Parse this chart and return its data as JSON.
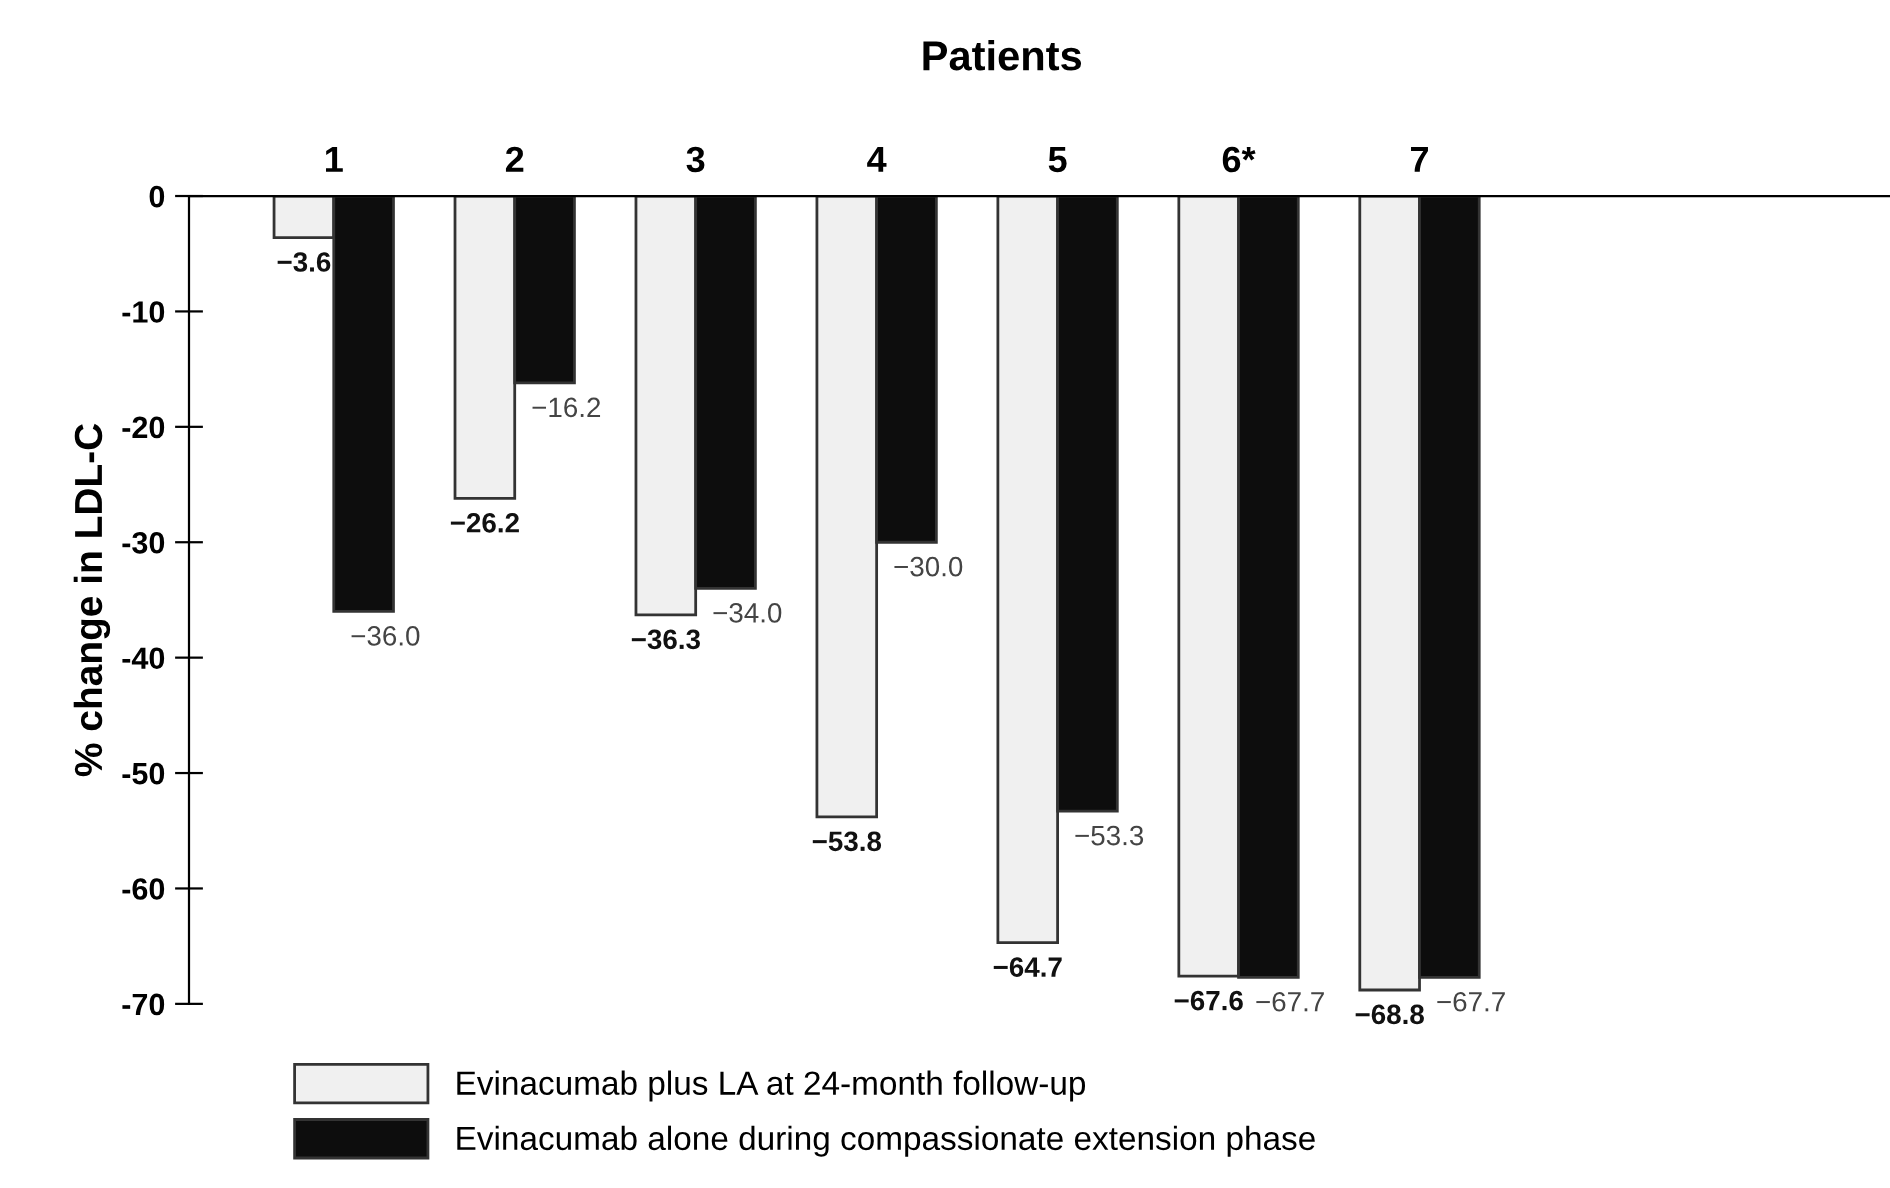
{
  "chart_data": {
    "type": "bar",
    "title": "Patients",
    "ylabel": "% change in LDL-C",
    "categories": [
      "1",
      "2",
      "3",
      "4",
      "5",
      "6*",
      "7"
    ],
    "series": [
      {
        "name": "Evinacumab plus LA at 24-month follow-up",
        "color": "#f0f0f0",
        "values": [
          -3.6,
          -26.2,
          -36.3,
          -53.8,
          -64.7,
          -67.6,
          -68.8
        ],
        "value_labels": [
          "−3.6",
          "−26.2",
          "−36.3",
          "−53.8",
          "−64.7",
          "−67.6",
          "−68.8"
        ]
      },
      {
        "name": "Evinacumab alone during compassionate extension phase",
        "color": "#0d0d0d",
        "values": [
          -36.0,
          -16.2,
          -34.0,
          -30.0,
          -53.3,
          -67.7,
          -67.7
        ],
        "value_labels": [
          "−36.0",
          "−16.2",
          "−34.0",
          "−30.0",
          "−53.3",
          "−67.7",
          "−67.7"
        ]
      }
    ],
    "ylim": [
      -70,
      0
    ],
    "yticks": [
      0,
      -10,
      -20,
      -30,
      -40,
      -50,
      -60,
      -70
    ],
    "grid": false,
    "legend": "bottom"
  }
}
